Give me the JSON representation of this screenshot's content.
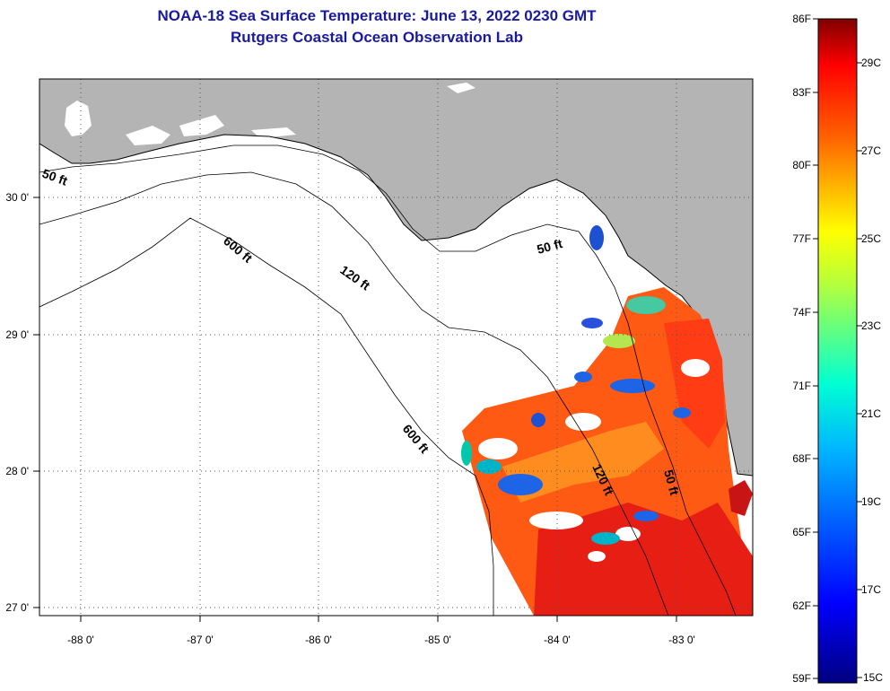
{
  "title_line1": "NOAA-18 Sea Surface Temperature:  June 13, 2022 0230 GMT",
  "title_line2": "Rutgers Coastal Ocean Observation Lab",
  "map": {
    "lon_labels": [
      "-88 0'",
      "-87 0'",
      "-86 0'",
      "-85 0'",
      "-84 0'",
      "-83 0'"
    ],
    "lat_labels": [
      "30 0'",
      "29 0'",
      "28 0'",
      "27 0'"
    ],
    "contour_labels": [
      "50 ft",
      "600 ft",
      "120 ft",
      "50 ft",
      "600 ft",
      "120 ft",
      "50 ft"
    ]
  },
  "colorbar": {
    "f_labels": [
      "86F",
      "83F",
      "80F",
      "77F",
      "74F",
      "71F",
      "68F",
      "65F",
      "62F",
      "59F"
    ],
    "c_labels": [
      "29C",
      "27C",
      "25C",
      "23C",
      "21C",
      "19C",
      "17C",
      "15C"
    ]
  },
  "colors": {
    "title": "#1a1aa0",
    "land": "#b4b4b4",
    "ocean": "#ffffff"
  }
}
